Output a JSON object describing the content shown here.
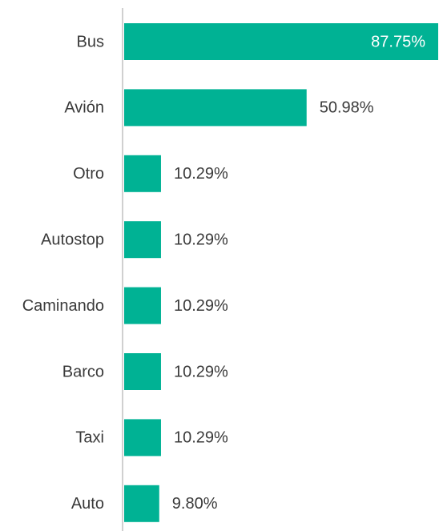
{
  "chart_data": {
    "type": "bar",
    "orientation": "horizontal",
    "categories": [
      "Bus",
      "Avión",
      "Otro",
      "Autostop",
      "Caminando",
      "Barco",
      "Taxi",
      "Auto"
    ],
    "values": [
      87.75,
      50.98,
      10.29,
      10.29,
      10.29,
      10.29,
      10.29,
      9.8
    ],
    "value_labels": [
      "87.75%",
      "50.98%",
      "10.29%",
      "10.29%",
      "10.29%",
      "10.29%",
      "10.29%",
      "9.80%"
    ],
    "color": "#00b294"
  }
}
